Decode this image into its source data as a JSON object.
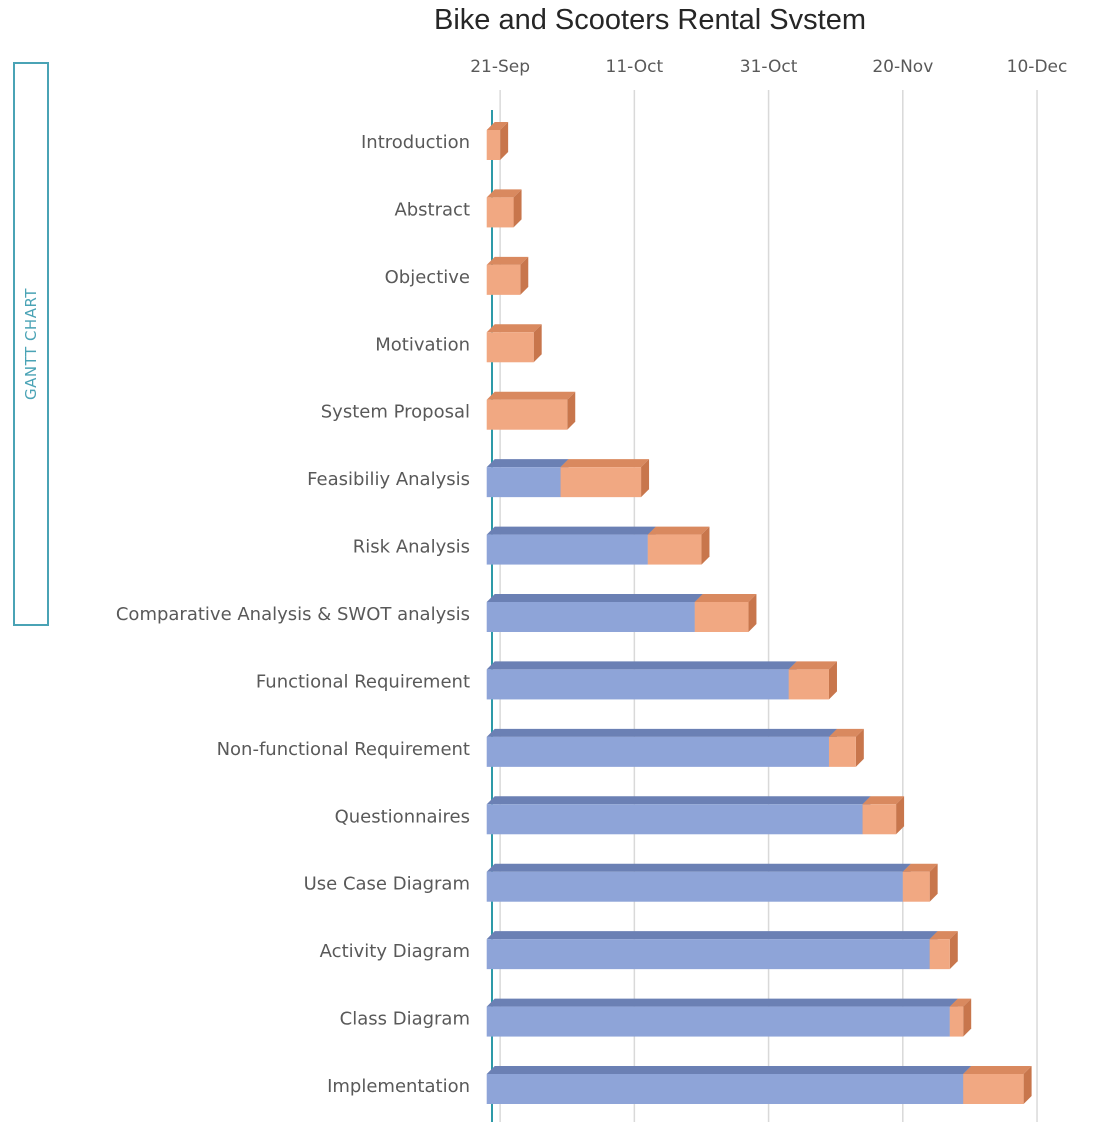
{
  "chart_data": {
    "type": "bar",
    "subtype": "gantt-stacked-horizontal-3d",
    "title": "Bike and Scooters Rental Svstem",
    "side_label": "GANTT CHART",
    "x_axis": {
      "position": "top",
      "range": [
        "2023-09-18",
        "2023-12-17"
      ],
      "ticks": [
        "21-Sep",
        "11-Oct",
        "31-Oct",
        "20-Nov",
        "10-Dec"
      ]
    },
    "series": [
      {
        "role": "start",
        "color": "#8ea4d8"
      },
      {
        "role": "duration",
        "color": "#f1a882"
      }
    ],
    "tasks": [
      {
        "name": "Introduction",
        "start": "2023-09-19",
        "end": "2023-09-21"
      },
      {
        "name": "Abstract",
        "start": "2023-09-19",
        "end": "2023-09-23"
      },
      {
        "name": "Objective",
        "start": "2023-09-19",
        "end": "2023-09-24"
      },
      {
        "name": "Motivation",
        "start": "2023-09-19",
        "end": "2023-09-26"
      },
      {
        "name": "System Proposal",
        "start": "2023-09-19",
        "end": "2023-10-01"
      },
      {
        "name": "Feasibiliy Analysis",
        "start": "2023-09-30",
        "end": "2023-10-12"
      },
      {
        "name": "Risk Analysis",
        "start": "2023-10-13",
        "end": "2023-10-21"
      },
      {
        "name": "Comparative Analysis & SWOT analysis",
        "start": "2023-10-20",
        "end": "2023-10-28"
      },
      {
        "name": "Functional Requirement",
        "start": "2023-11-03",
        "end": "2023-11-09"
      },
      {
        "name": "Non-functional Requirement",
        "start": "2023-11-09",
        "end": "2023-11-13"
      },
      {
        "name": "Questionnaires",
        "start": "2023-11-14",
        "end": "2023-11-19"
      },
      {
        "name": "Use Case Diagram",
        "start": "2023-11-20",
        "end": "2023-11-24"
      },
      {
        "name": "Activity Diagram",
        "start": "2023-11-24",
        "end": "2023-11-27"
      },
      {
        "name": "Class Diagram",
        "start": "2023-11-27",
        "end": "2023-11-29"
      },
      {
        "name": "Implementation",
        "start": "2023-11-29",
        "end": "2023-12-08"
      }
    ]
  }
}
